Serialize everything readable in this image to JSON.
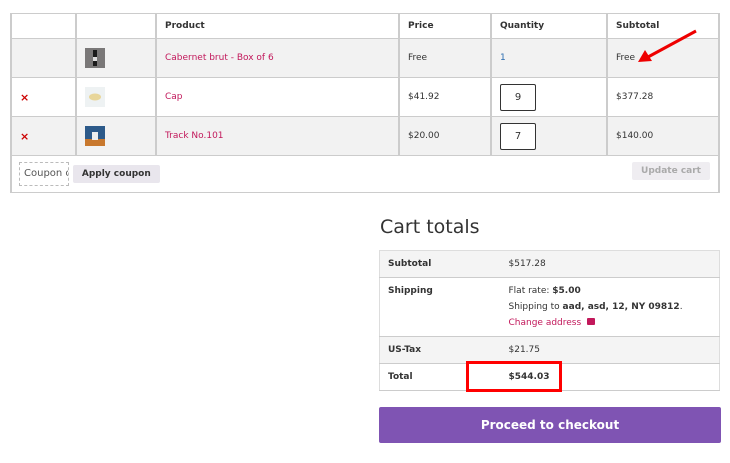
{
  "cart": {
    "headers": [
      "",
      "",
      "Product",
      "Price",
      "Quantity",
      "Subtotal"
    ],
    "rows": [
      {
        "remove": "",
        "product": "Cabernet brut - Box of 6",
        "price": "Free",
        "quantity": "1",
        "subtotal": "Free"
      },
      {
        "remove": "×",
        "product": "Cap",
        "price": "$41.92",
        "quantity": "9",
        "subtotal": "$377.28"
      },
      {
        "remove": "×",
        "product": "Track No.101",
        "price": "$20.00",
        "quantity": "7",
        "subtotal": "$140.00"
      }
    ],
    "coupon_placeholder": "Coupon code",
    "apply_coupon": "Apply coupon",
    "update_cart": "Update cart"
  },
  "totals": {
    "title": "Cart totals",
    "subtotal_label": "Subtotal",
    "subtotal": "$517.28",
    "shipping_label": "Shipping",
    "flat_rate_label": "Flat rate:",
    "flat_rate": "$5.00",
    "shipping_to_label": "Shipping to",
    "shipping_to": "aad, asd, 12, NY 09812",
    "change_address": "Change address",
    "tax_label": "US-Tax",
    "tax": "$21.75",
    "total_label": "Total",
    "total": "$544.03"
  },
  "checkout": "Proceed to checkout",
  "colors": {
    "accent": "#7f54b3",
    "link": "#c2185b",
    "annotation": "#ff0000"
  }
}
